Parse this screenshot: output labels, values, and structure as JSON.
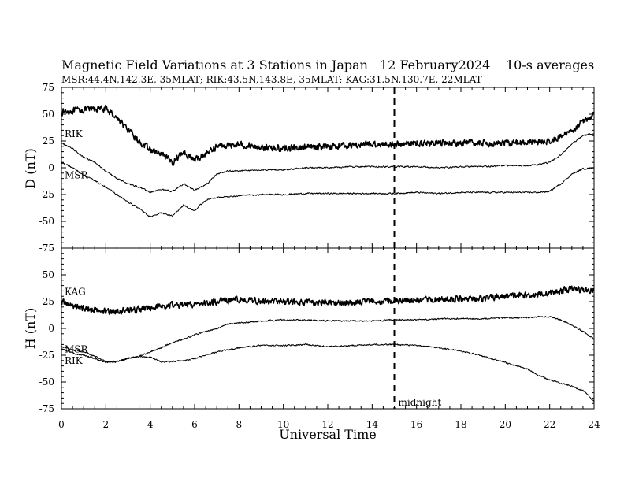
{
  "header": {
    "title": "Magnetic Field Variations at 3 Stations in Japan",
    "date": "12 February2024",
    "averaging": "10-s averages",
    "stations_line": "MSR:44.4N,142.3E, 35MLAT;  RIK:43.5N,143.8E, 35MLAT;  KAG:31.5N,130.7E, 22MLAT"
  },
  "chart_data": [
    {
      "type": "line",
      "ylabel": "D (nT)",
      "ylim": [
        -75,
        75
      ],
      "yticks": [
        "75",
        "50",
        "25",
        "0",
        "-25",
        "-50",
        "-75"
      ],
      "x": [
        0,
        0.5,
        1,
        1.5,
        2,
        2.5,
        3,
        3.5,
        4,
        4.5,
        5,
        5.5,
        6,
        6.5,
        7,
        7.5,
        8,
        9,
        10,
        11,
        12,
        13,
        14,
        15,
        16,
        17,
        18,
        19,
        20,
        21,
        21.5,
        22,
        22.5,
        23,
        23.5,
        24
      ],
      "series": [
        {
          "name": "KAG",
          "noisy": true,
          "values": [
            52,
            53,
            54,
            55,
            55,
            47,
            35,
            24,
            17,
            12,
            5,
            15,
            7,
            13,
            20,
            21,
            22,
            19,
            18,
            19,
            20,
            21,
            22,
            22,
            23,
            23,
            23,
            23,
            23,
            24,
            24,
            25,
            29,
            35,
            43,
            50
          ]
        },
        {
          "name": "RIK",
          "values": [
            23,
            18,
            10,
            5,
            -3,
            -10,
            -15,
            -18,
            -23,
            -20,
            -22,
            -15,
            -21,
            -16,
            -6,
            -3,
            -3,
            -2,
            -2,
            0,
            0,
            1,
            1,
            1,
            1,
            0,
            1,
            1,
            2,
            2,
            3,
            5,
            12,
            22,
            30,
            32
          ]
        },
        {
          "name": "MSR",
          "values": [
            5,
            0,
            -7,
            -12,
            -18,
            -25,
            -32,
            -38,
            -46,
            -42,
            -45,
            -35,
            -40,
            -30,
            -28,
            -27,
            -26,
            -25,
            -25,
            -24,
            -24,
            -24,
            -24,
            -24,
            -23,
            -24,
            -23,
            -23,
            -23,
            -23,
            -23,
            -22,
            -15,
            -6,
            -1,
            0
          ]
        }
      ],
      "series_labels": [
        "RIK",
        "MSR"
      ]
    },
    {
      "type": "line",
      "xlabel": "Universal Time",
      "ylabel": "H (nT)",
      "xlim": [
        0,
        24
      ],
      "xticks": [
        "0",
        "2",
        "4",
        "6",
        "8",
        "10",
        "12",
        "14",
        "16",
        "18",
        "20",
        "22",
        "24"
      ],
      "ylim": [
        -75,
        75
      ],
      "yticks": [
        "50",
        "25",
        "0",
        "-25",
        "-50",
        "-75"
      ],
      "x": [
        0,
        0.5,
        1,
        1.5,
        2,
        2.5,
        3,
        3.5,
        4,
        4.5,
        5,
        5.5,
        6,
        6.5,
        7,
        7.5,
        8,
        9,
        10,
        11,
        12,
        13,
        14,
        15,
        16,
        17,
        18,
        19,
        20,
        21,
        21.5,
        22,
        22.5,
        23,
        23.5,
        24
      ],
      "series": [
        {
          "name": "KAG",
          "noisy": true,
          "values": [
            25,
            21,
            19,
            17,
            16,
            16,
            17,
            18,
            19,
            21,
            22,
            22,
            22,
            24,
            25,
            26,
            27,
            26,
            25,
            24,
            24,
            24,
            25,
            26,
            27,
            27,
            28,
            28,
            30,
            31,
            32,
            33,
            35,
            37,
            36,
            35
          ]
        },
        {
          "name": "MSR",
          "values": [
            -17,
            -20,
            -22,
            -26,
            -31,
            -31,
            -28,
            -26,
            -22,
            -18,
            -13,
            -10,
            -6,
            -3,
            0,
            4,
            5,
            7,
            8,
            8,
            7,
            7,
            7,
            8,
            8,
            9,
            9,
            9,
            10,
            10,
            11,
            11,
            8,
            3,
            -3,
            -10
          ]
        },
        {
          "name": "RIK",
          "values": [
            -19,
            -23,
            -25,
            -28,
            -32,
            -31,
            -28,
            -26,
            -27,
            -31,
            -31,
            -30,
            -28,
            -25,
            -22,
            -20,
            -18,
            -16,
            -16,
            -15,
            -17,
            -16,
            -15,
            -15,
            -16,
            -18,
            -21,
            -26,
            -32,
            -38,
            -44,
            -48,
            -51,
            -54,
            -58,
            -68
          ]
        }
      ],
      "series_labels": [
        "KAG",
        "MSR",
        "RIK"
      ],
      "annotation": "midnight",
      "midnight_x": 15
    }
  ]
}
